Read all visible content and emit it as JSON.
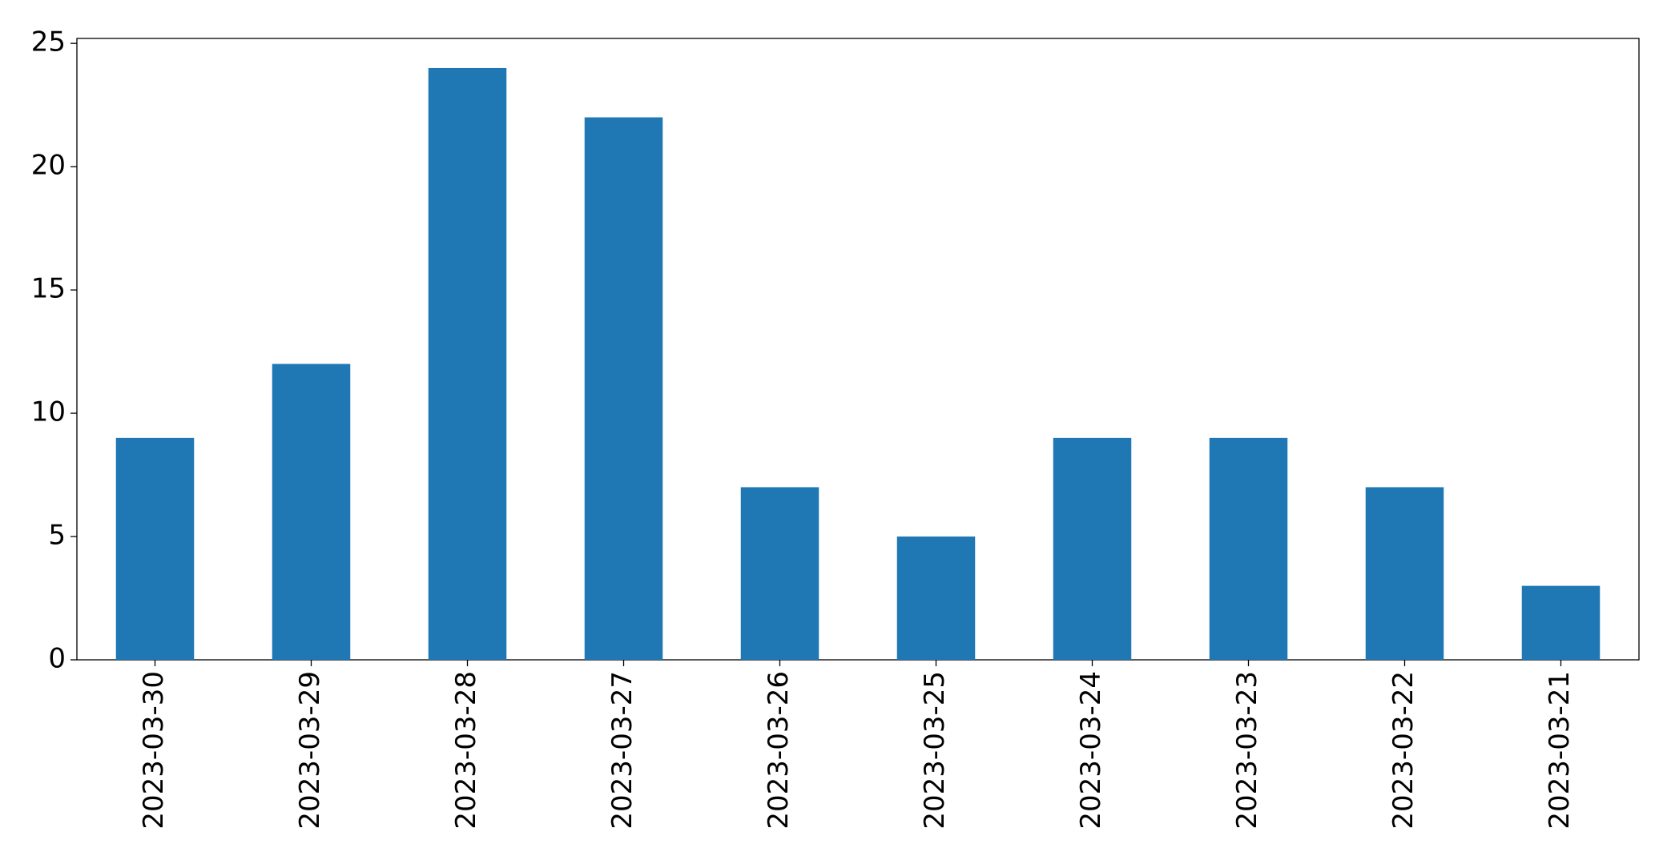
{
  "chart_data": {
    "type": "bar",
    "categories": [
      "2023-03-30",
      "2023-03-29",
      "2023-03-28",
      "2023-03-27",
      "2023-03-26",
      "2023-03-25",
      "2023-03-24",
      "2023-03-23",
      "2023-03-22",
      "2023-03-21"
    ],
    "values": [
      9,
      12,
      24,
      22,
      7,
      5,
      9,
      9,
      7,
      3
    ],
    "color": "#1f77b4",
    "ylim": [
      0,
      25.2
    ],
    "yticks": [
      0,
      5,
      10,
      15,
      20,
      25
    ],
    "grid": false
  }
}
